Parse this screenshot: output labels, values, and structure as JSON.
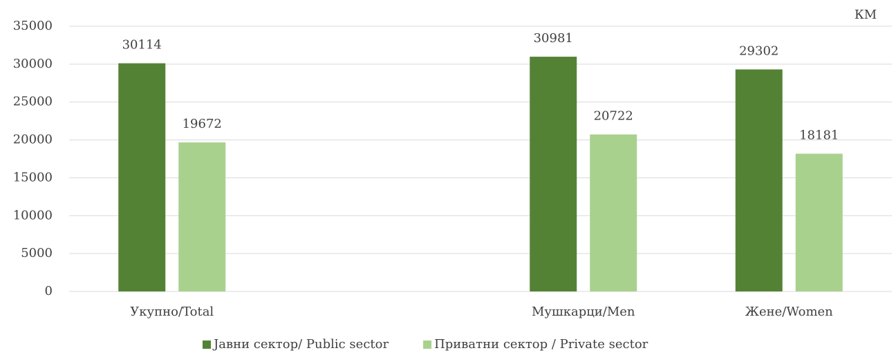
{
  "chart_data": {
    "type": "bar",
    "unit_label": "КМ",
    "categories": [
      "Укупно/Total",
      null,
      "Мушкарци/Men",
      "Жене/Women"
    ],
    "series": [
      {
        "name": "Јавни сектор/ Public sector",
        "color": "#548235",
        "values": [
          30114,
          null,
          30981,
          29302
        ]
      },
      {
        "name": "Приватни сектор / Private sector",
        "color": "#a9d18e",
        "values": [
          19672,
          null,
          20722,
          18181
        ]
      }
    ],
    "ylim": [
      0,
      35000
    ],
    "yticks": [
      0,
      5000,
      10000,
      15000,
      20000,
      25000,
      30000,
      35000
    ],
    "grid": true,
    "legend": "bottom"
  }
}
